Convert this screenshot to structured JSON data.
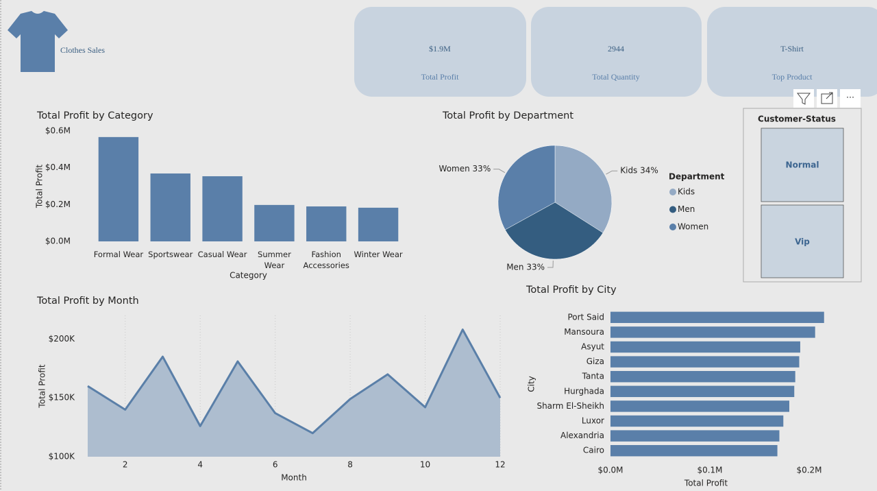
{
  "header": {
    "title": "Clothes Sales"
  },
  "kpis": [
    {
      "value": "$1.9M",
      "label": "Total Profit"
    },
    {
      "value": "2944",
      "label": "Total Quantity"
    },
    {
      "value": "T-Shirt",
      "label": "Top Product"
    }
  ],
  "slicer": {
    "title": "Customer-Status",
    "items": [
      "Normal",
      "Vip"
    ]
  },
  "chart_data": [
    {
      "type": "bar",
      "title": "Total Profit by Category",
      "x_label": "Category",
      "y_label": "Total Profit",
      "categories": [
        "Formal Wear",
        "Sportswear",
        "Casual Wear",
        "Summer Wear",
        "Fashion Accessories",
        "Winter Wear"
      ],
      "values": [
        567000,
        369000,
        354000,
        198000,
        190000,
        183000
      ],
      "color": "#5a7fa9",
      "ylim": [
        0,
        600000
      ],
      "yticks": [
        {
          "value": 0,
          "label": "$0.0M"
        },
        {
          "value": 200000,
          "label": "$0.2M"
        },
        {
          "value": 400000,
          "label": "$0.4M"
        },
        {
          "value": 600000,
          "label": "$0.6M"
        }
      ],
      "grid": false
    },
    {
      "type": "pie",
      "title": "Total Profit by Department",
      "legend_title": "Department",
      "categories": [
        "Kids",
        "Men",
        "Women"
      ],
      "values": [
        34,
        33,
        33
      ],
      "value_labels": [
        "Kids 34%",
        "Men 33%",
        "Women 33%"
      ],
      "colors": [
        "#94aac4",
        "#345d80",
        "#5a7fa9"
      ]
    },
    {
      "type": "area",
      "title": "Total Profit by Month",
      "x_label": "Month",
      "y_label": "Total Profit",
      "x": [
        1,
        2,
        3,
        4,
        5,
        6,
        7,
        8,
        9,
        10,
        11,
        12
      ],
      "values": [
        160000,
        140000,
        185000,
        126000,
        181000,
        137000,
        120000,
        149000,
        170000,
        142000,
        208000,
        150000
      ],
      "color": "#5a7fa8",
      "fill": "#adbdcf",
      "xlim": [
        1,
        12
      ],
      "xticks": [
        2,
        4,
        6,
        8,
        10,
        12
      ],
      "ylim": [
        100000,
        220000
      ],
      "yticks": [
        {
          "value": 100000,
          "label": "$100K"
        },
        {
          "value": 150000,
          "label": "$150K"
        },
        {
          "value": 200000,
          "label": "$200K"
        }
      ],
      "grid": true
    },
    {
      "type": "barh",
      "title": "Total Profit by City",
      "x_label": "Total Profit",
      "y_label": "City",
      "categories": [
        "Port Said",
        "Mansoura",
        "Asyut",
        "Giza",
        "Tanta",
        "Hurghada",
        "Sharm El-Sheikh",
        "Luxor",
        "Alexandria",
        "Cairo"
      ],
      "values": [
        215000,
        206000,
        191000,
        190000,
        186000,
        185000,
        180000,
        174000,
        170000,
        168000
      ],
      "color": "#5a7fa9",
      "xlim": [
        0,
        220000
      ],
      "xticks": [
        {
          "value": 0,
          "label": "$0.0M"
        },
        {
          "value": 100000,
          "label": "$0.1M"
        },
        {
          "value": 200000,
          "label": "$0.2M"
        }
      ],
      "grid": false
    }
  ]
}
